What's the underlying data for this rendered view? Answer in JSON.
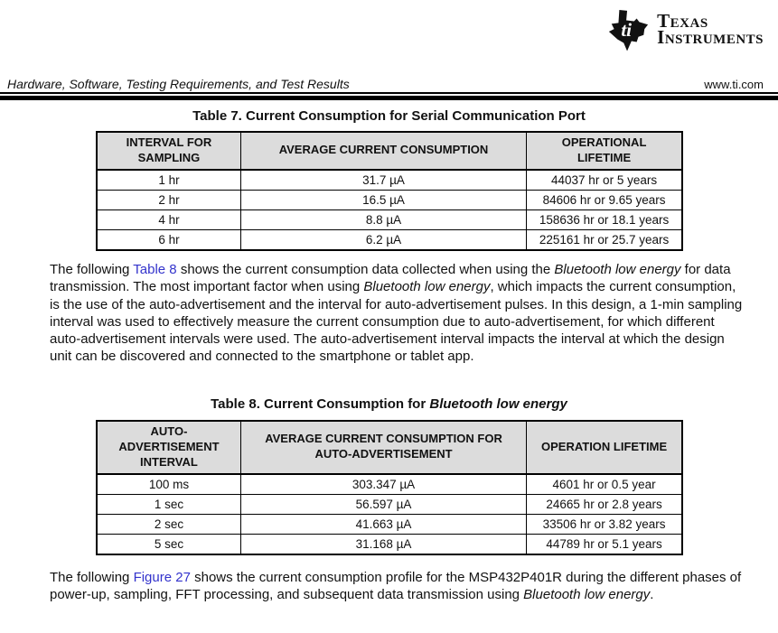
{
  "colors": {
    "link_blue": "#3333cc",
    "table_header_bg": "#dcdcdc",
    "rule_black": "#000000"
  },
  "logo": {
    "monogram": "ti",
    "wordmark_line1": "Texas",
    "wordmark_line2": "Instruments"
  },
  "header": {
    "left_text": "Hardware, Software, Testing Requirements, and Test Results",
    "right_text": "www.ti.com"
  },
  "table7": {
    "title_segments": [
      {
        "text": "Table 7. Current Consumption for Serial Communication Port",
        "style": "bold"
      }
    ],
    "columns": [
      "INTERVAL FOR\nSAMPLING",
      "AVERAGE CURRENT CONSUMPTION",
      "OPERATIONAL\nLIFETIME"
    ],
    "rows": [
      [
        "1 hr",
        "31.7 µA",
        "44037 hr or 5 years"
      ],
      [
        "2 hr",
        "16.5 µA",
        "84606 hr or 9.65 years"
      ],
      [
        "4 hr",
        "8.8 µA",
        "158636 hr or 18.1 years"
      ],
      [
        "6 hr",
        "6.2 µA",
        "225161 hr or 25.7 years"
      ]
    ]
  },
  "paragraph1": {
    "segments": [
      {
        "text": "The following ",
        "style": "normal"
      },
      {
        "text": "Table 8",
        "style": "link"
      },
      {
        "text": " shows the current consumption data collected when using the ",
        "style": "normal"
      },
      {
        "text": "Bluetooth low energy",
        "style": "italic"
      },
      {
        "text": " for data transmission. The most important factor when using ",
        "style": "normal"
      },
      {
        "text": "Bluetooth low energy",
        "style": "italic"
      },
      {
        "text": ", which impacts the current consumption, is the use of the auto-advertisement and the interval for auto-advertisement pulses. In this design, a 1-min sampling interval was used to effectively measure the current consumption due to auto-advertisement, for which different auto-advertisement intervals were used. The auto-advertisement interval impacts the interval at which the design unit can be discovered and connected to the smartphone or tablet app.",
        "style": "normal"
      }
    ]
  },
  "table8": {
    "title_segments": [
      {
        "text": "Table 8. Current Consumption for ",
        "style": "bold"
      },
      {
        "text": "Bluetooth low energy",
        "style": "bold-italic"
      }
    ],
    "columns": [
      "AUTO-\nADVERTISEMENT\nINTERVAL",
      "AVERAGE CURRENT CONSUMPTION FOR\nAUTO-ADVERTISEMENT",
      "OPERATION LIFETIME"
    ],
    "rows": [
      [
        "100 ms",
        "303.347 µA",
        "4601 hr or 0.5 year"
      ],
      [
        "1 sec",
        "56.597 µA",
        "24665 hr or 2.8 years"
      ],
      [
        "2 sec",
        "41.663 µA",
        "33506 hr or 3.82 years"
      ],
      [
        "5 sec",
        "31.168 µA",
        "44789 hr or 5.1 years"
      ]
    ]
  },
  "paragraph2": {
    "segments": [
      {
        "text": "The following ",
        "style": "normal"
      },
      {
        "text": "Figure 27",
        "style": "link"
      },
      {
        "text": " shows the current consumption profile for the MSP432P401R during the different phases of power-up, sampling, FFT processing, and subsequent data transmission using ",
        "style": "normal"
      },
      {
        "text": "Bluetooth low energy",
        "style": "italic"
      },
      {
        "text": ".",
        "style": "normal"
      }
    ]
  }
}
